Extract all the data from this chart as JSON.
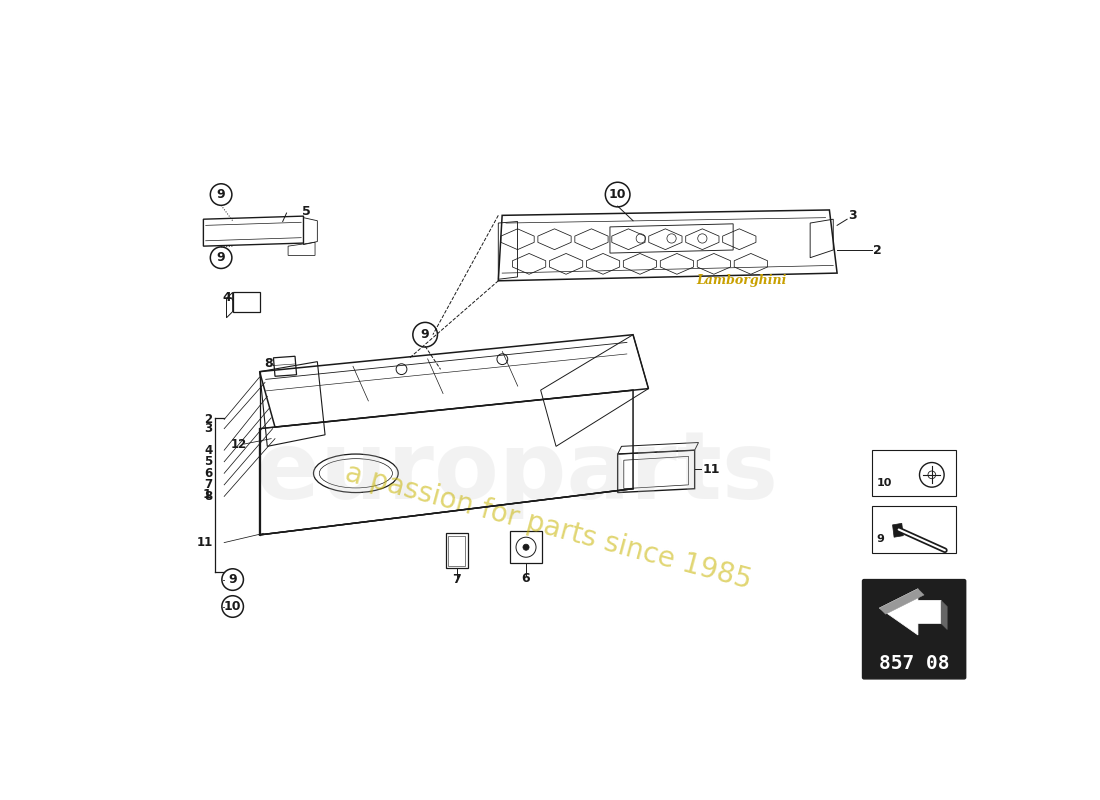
{
  "bg_color": "#ffffff",
  "lc": "#1a1a1a",
  "fig_width": 11.0,
  "fig_height": 8.0,
  "dpi": 100,
  "watermark1": "europarts",
  "watermark2": "a passion for parts since 1985",
  "lamborghini_text": "Lamborghini",
  "part_number": "857 08",
  "wm1_color": "#cccccc",
  "wm2_color": "#c8b400",
  "lamb_color": "#c8a000"
}
